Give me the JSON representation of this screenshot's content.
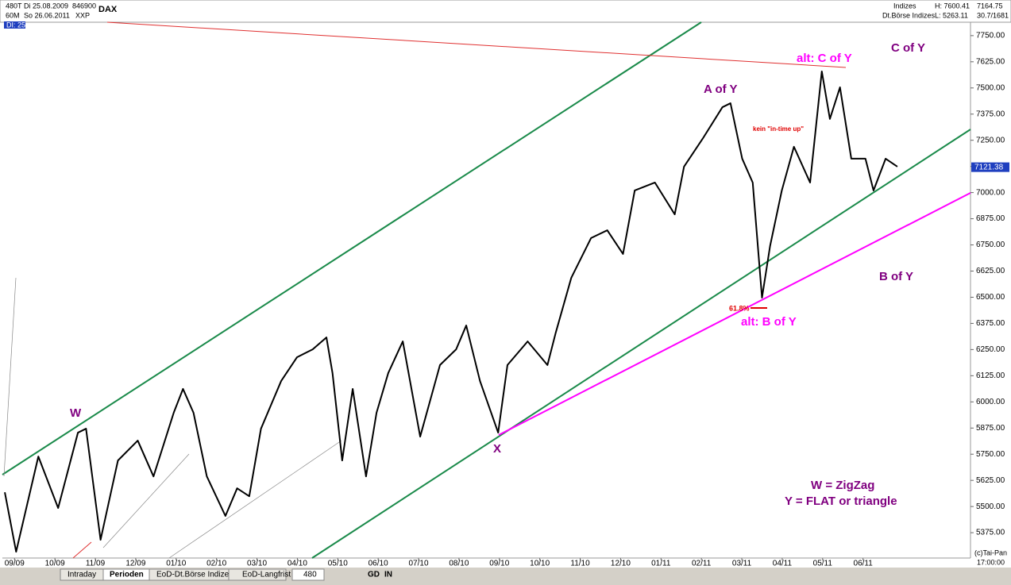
{
  "header": {
    "left": [
      "480T",
      "Di 25.08.2009",
      "846900",
      "DAX",
      "60M",
      "So 26.06.2011",
      "XXP",
      "DI: 25"
    ],
    "right": [
      "Indizes",
      "Dt.Börse Indizes",
      "H: 7600.41",
      "L: 5263.11",
      "7164.75",
      "30.7/1681"
    ]
  },
  "footer": {
    "copyright": "(c)Tai-Pan",
    "time": "17:00:00"
  },
  "toolbar": [
    "Intraday",
    "Perioden",
    "EoD-Dt.Börse Indizes",
    "EoD-Langfrist",
    "480",
    "GD",
    "IN"
  ],
  "chart_data": {
    "type": "line",
    "annotations": [
      "W",
      "X",
      "A of Y",
      "alt: C of Y",
      "C of Y",
      "B of Y",
      "alt: B of Y",
      "61.8%",
      "kein \"in-time up\"",
      "W = ZigZag",
      "Y = FLAT or triangle"
    ],
    "last_price": 7121.38,
    "xlim": [
      -0.3,
      23.66
    ],
    "xticks": [
      {
        "value": 0,
        "label": "09/09"
      },
      {
        "value": 1,
        "label": "10/09"
      },
      {
        "value": 2,
        "label": "11/09"
      },
      {
        "value": 3,
        "label": "12/09"
      },
      {
        "value": 4,
        "label": "01/10"
      },
      {
        "value": 5,
        "label": "02/10"
      },
      {
        "value": 6,
        "label": "03/10"
      },
      {
        "value": 7,
        "label": "04/10"
      },
      {
        "value": 8,
        "label": "05/10"
      },
      {
        "value": 9,
        "label": "06/10"
      },
      {
        "value": 10,
        "label": "07/10"
      },
      {
        "value": 11,
        "label": "08/10"
      },
      {
        "value": 12,
        "label": "09/10"
      },
      {
        "value": 13,
        "label": "10/10"
      },
      {
        "value": 14,
        "label": "11/10"
      },
      {
        "value": 15,
        "label": "12/10"
      },
      {
        "value": 16,
        "label": "01/11"
      },
      {
        "value": 17,
        "label": "02/11"
      },
      {
        "value": 18,
        "label": "03/11"
      },
      {
        "value": 19,
        "label": "04/11"
      },
      {
        "value": 20,
        "label": "05/11"
      },
      {
        "value": 21,
        "label": "06/11"
      }
    ],
    "ylim": [
      5254,
      7814
    ],
    "yticks": [
      {
        "value": 5375,
        "label": "5375.00"
      },
      {
        "value": 5500,
        "label": "5500.00"
      },
      {
        "value": 5625,
        "label": "5625.00"
      },
      {
        "value": 5750,
        "label": "5750.00"
      },
      {
        "value": 5875,
        "label": "5875.00"
      },
      {
        "value": 6000,
        "label": "6000.00"
      },
      {
        "value": 6125,
        "label": "6125.00"
      },
      {
        "value": 6250,
        "label": "6250.00"
      },
      {
        "value": 6375,
        "label": "6375.00"
      },
      {
        "value": 6500,
        "label": "6500.00"
      },
      {
        "value": 6625,
        "label": "6625.00"
      },
      {
        "value": 6750,
        "label": "6750.00"
      },
      {
        "value": 6875,
        "label": "6875.00"
      },
      {
        "value": 7000,
        "label": "7000.00"
      },
      {
        "value": 7125,
        "label": "7125.00"
      },
      {
        "value": 7250,
        "label": "7250.00"
      },
      {
        "value": 7375,
        "label": "7375.00"
      },
      {
        "value": 7500,
        "label": "7500.00"
      },
      {
        "value": 7625,
        "label": "7625.00"
      },
      {
        "value": 7750,
        "label": "7750.00"
      }
    ],
    "series": [
      {
        "name": "DAX",
        "color": "#000000",
        "x": [
          -0.24,
          0.04,
          0.59,
          1.08,
          1.57,
          1.77,
          2.13,
          2.56,
          3.05,
          3.44,
          3.94,
          4.17,
          4.43,
          4.76,
          5.22,
          5.51,
          5.81,
          6.1,
          6.6,
          6.99,
          7.38,
          7.72,
          7.87,
          8.11,
          8.37,
          8.7,
          8.96,
          9.25,
          9.61,
          10.04,
          10.53,
          10.93,
          11.18,
          11.52,
          11.97,
          12.2,
          12.7,
          13.19,
          13.39,
          13.78,
          14.27,
          14.67,
          15.06,
          15.35,
          15.85,
          16.34,
          16.57,
          17.03,
          17.52,
          17.72,
          18.01,
          18.27,
          18.5,
          18.7,
          18.99,
          19.29,
          19.69,
          19.98,
          20.18,
          20.43,
          20.71,
          21.06,
          21.26,
          21.56,
          21.85
        ],
        "values": [
          5568,
          5284,
          5739,
          5493,
          5853,
          5872,
          5341,
          5720,
          5815,
          5644,
          5948,
          6062,
          5948,
          5644,
          5455,
          5587,
          5549,
          5872,
          6100,
          6213,
          6251,
          6308,
          6138,
          5720,
          6062,
          5644,
          5948,
          6138,
          6289,
          5834,
          6176,
          6251,
          6365,
          6100,
          5853,
          6176,
          6289,
          6176,
          6327,
          6593,
          6783,
          6820,
          6707,
          7010,
          7048,
          6896,
          7124,
          7257,
          7408,
          7427,
          7162,
          7048,
          6498,
          6745,
          7010,
          7219,
          7048,
          7579,
          7352,
          7503,
          7162,
          7162,
          7010,
          7162,
          7124
        ]
      }
    ]
  }
}
